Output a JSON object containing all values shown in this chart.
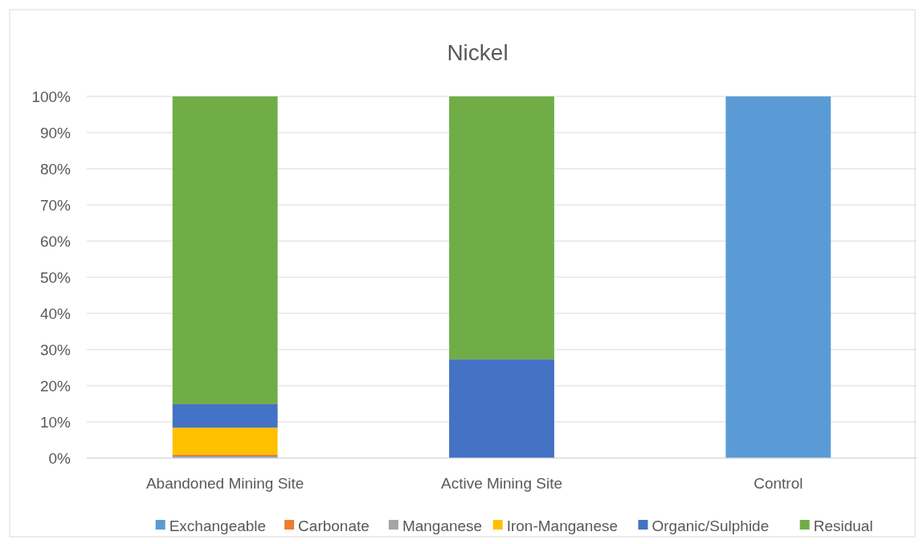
{
  "chart_data": {
    "type": "bar",
    "title": "Nickel",
    "stacked": true,
    "categories": [
      "Abandoned Mining Site",
      "Active Mining Site",
      "Control"
    ],
    "series": [
      {
        "name": "Exchangeable",
        "color": "#5b9bd5",
        "values": [
          0.4,
          0,
          100
        ]
      },
      {
        "name": "Carbonate",
        "color": "#ed7d31",
        "values": [
          0.5,
          0,
          0
        ]
      },
      {
        "name": "Manganese",
        "color": "#a5a5a5",
        "values": [
          0,
          0,
          0
        ]
      },
      {
        "name": "Iron-Manganese",
        "color": "#ffc000",
        "values": [
          7.5,
          0,
          0
        ]
      },
      {
        "name": "Organic/Sulphide",
        "color": "#4472c4",
        "values": [
          6.5,
          27.3,
          0
        ]
      },
      {
        "name": "Residual",
        "color": "#70ad47",
        "values": [
          85.1,
          72.7,
          0
        ]
      }
    ],
    "ylim": [
      0,
      100
    ],
    "yticks": [
      {
        "value": 0,
        "label": "0%"
      },
      {
        "value": 10,
        "label": "10%"
      },
      {
        "value": 20,
        "label": "20%"
      },
      {
        "value": 30,
        "label": "30%"
      },
      {
        "value": 40,
        "label": "40%"
      },
      {
        "value": 50,
        "label": "50%"
      },
      {
        "value": 60,
        "label": "60%"
      },
      {
        "value": 70,
        "label": "70%"
      },
      {
        "value": 80,
        "label": "80%"
      },
      {
        "value": 90,
        "label": "90%"
      },
      {
        "value": 100,
        "label": "100%"
      }
    ],
    "grid": "y",
    "legend": "bottom"
  }
}
